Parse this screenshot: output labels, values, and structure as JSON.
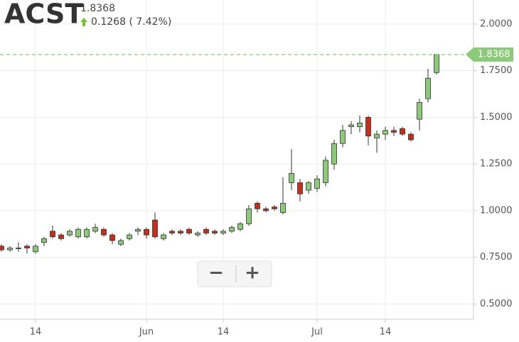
{
  "chart_data": {
    "type": "candlestick",
    "title": "ACST",
    "last_price": 1.8368,
    "change": 0.1268,
    "change_label": "( 7.42%)",
    "categories": [
      null,
      null,
      null,
      null,
      "14",
      null,
      null,
      null,
      null,
      null,
      null,
      null,
      null,
      null,
      null,
      null,
      null,
      "Jun",
      null,
      null,
      null,
      null,
      null,
      null,
      null,
      null,
      "14",
      null,
      null,
      null,
      null,
      null,
      null,
      null,
      null,
      null,
      null,
      "Jul",
      null,
      null,
      null,
      null,
      null,
      null,
      null,
      "14",
      null,
      null,
      null,
      null,
      null,
      null
    ],
    "open": [
      0.81,
      0.79,
      0.8,
      0.81,
      0.78,
      0.83,
      0.89,
      0.87,
      0.87,
      0.86,
      0.86,
      0.89,
      0.9,
      0.87,
      0.82,
      0.85,
      0.89,
      0.9,
      0.95,
      0.85,
      0.89,
      0.89,
      0.9,
      0.87,
      0.9,
      0.89,
      0.88,
      0.89,
      0.9,
      0.93,
      1.04,
      1.01,
      1.02,
      0.99,
      1.15,
      1.15,
      1.11,
      1.12,
      1.15,
      1.25,
      1.36,
      1.45,
      1.45,
      1.5,
      1.39,
      1.41,
      1.43,
      1.44,
      1.41,
      1.49,
      1.6,
      1.74
    ],
    "high": [
      0.82,
      0.81,
      0.83,
      0.82,
      0.82,
      0.86,
      0.92,
      0.88,
      0.9,
      0.91,
      0.91,
      0.93,
      0.91,
      0.88,
      0.85,
      0.88,
      0.91,
      0.91,
      0.99,
      0.88,
      0.9,
      0.9,
      0.91,
      0.89,
      0.91,
      0.9,
      0.9,
      0.92,
      0.94,
      1.03,
      1.05,
      1.02,
      1.03,
      1.18,
      1.33,
      1.17,
      1.16,
      1.19,
      1.29,
      1.38,
      1.46,
      1.48,
      1.51,
      1.51,
      1.43,
      1.45,
      1.45,
      1.45,
      1.42,
      1.6,
      1.76,
      1.84
    ],
    "low": [
      0.78,
      0.78,
      0.78,
      0.77,
      0.77,
      0.81,
      0.85,
      0.84,
      0.86,
      0.85,
      0.85,
      0.88,
      0.86,
      0.82,
      0.81,
      0.84,
      0.87,
      0.85,
      0.85,
      0.84,
      0.87,
      0.87,
      0.87,
      0.86,
      0.87,
      0.87,
      0.87,
      0.88,
      0.89,
      0.92,
      0.99,
      0.99,
      1.0,
      0.98,
      1.11,
      1.05,
      1.09,
      1.1,
      1.13,
      1.22,
      1.34,
      1.41,
      1.42,
      1.35,
      1.31,
      1.38,
      1.4,
      1.4,
      1.37,
      1.43,
      1.58,
      1.73
    ],
    "close": [
      0.79,
      0.8,
      0.8,
      0.8,
      0.81,
      0.85,
      0.86,
      0.85,
      0.89,
      0.9,
      0.9,
      0.91,
      0.87,
      0.84,
      0.84,
      0.87,
      0.9,
      0.87,
      0.86,
      0.87,
      0.88,
      0.88,
      0.88,
      0.88,
      0.88,
      0.88,
      0.89,
      0.91,
      0.93,
      1.01,
      1.01,
      1.0,
      1.01,
      1.04,
      1.2,
      1.09,
      1.15,
      1.17,
      1.27,
      1.36,
      1.43,
      1.46,
      1.47,
      1.4,
      1.41,
      1.43,
      1.42,
      1.41,
      1.38,
      1.58,
      1.71,
      1.8368
    ],
    "up_color": "#8cc97a",
    "down_color": "#c0301d",
    "last_color": "#8cc97a",
    "ylim": [
      0.418,
      2.129
    ],
    "yticks": [
      {
        "value": 0.5,
        "label": "0.5000"
      },
      {
        "value": 0.75,
        "label": "0.7500"
      },
      {
        "value": 1,
        "label": "1.0000"
      },
      {
        "value": 1.25,
        "label": "1.2500"
      },
      {
        "value": 1.5,
        "label": "1.5000"
      },
      {
        "value": 1.75,
        "label": "1.7500"
      },
      {
        "value": 2,
        "label": "2.0000"
      }
    ],
    "grid": true,
    "controls": [
      "−",
      "+"
    ]
  }
}
